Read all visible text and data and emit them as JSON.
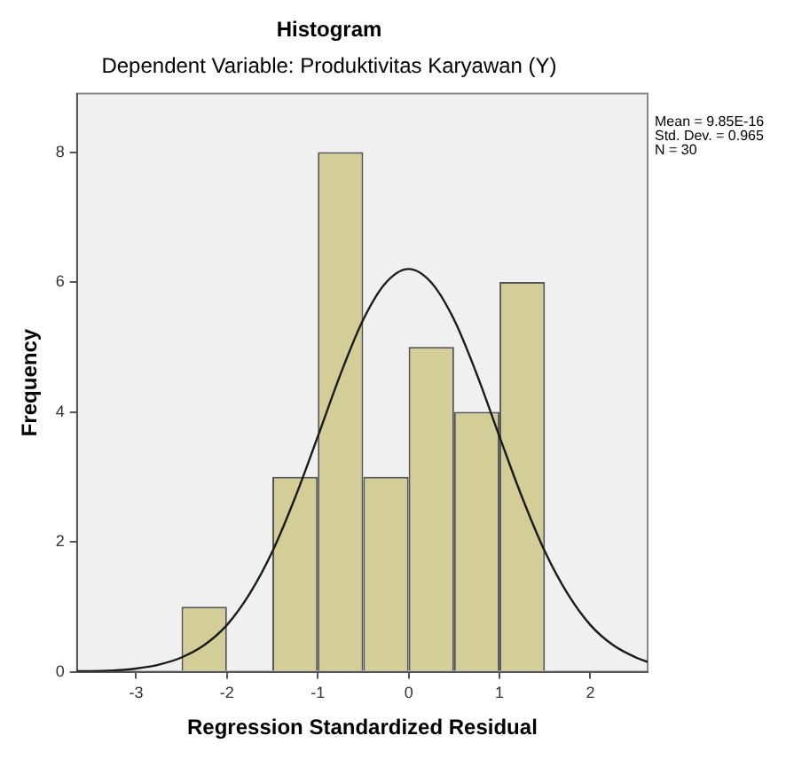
{
  "chart_data": {
    "type": "histogram",
    "title": "Histogram",
    "subtitle": "Dependent Variable: Produktivitas Karyawan (Y)",
    "xlabel": "Regression Standardized Residual",
    "ylabel": "Frequency",
    "bins": [
      -2.5,
      -2,
      -1.5,
      -1,
      -0.5,
      0,
      0.5,
      1,
      1.5
    ],
    "values": [
      1,
      0,
      3,
      8,
      3,
      5,
      4,
      6
    ],
    "color": "#d3ce98",
    "series": [
      {
        "type": "line",
        "color": "#1a1a1a",
        "x": [
          -3.65,
          -3.5,
          -3.25,
          -3,
          -2.75,
          -2.5,
          -2.25,
          -2,
          -1.75,
          -1.5,
          -1.25,
          -1,
          -0.75,
          -0.5,
          -0.25,
          0,
          0.25,
          0.5,
          0.75,
          1,
          1.25,
          1.5,
          1.75,
          2,
          2.25,
          2.5,
          2.63
        ],
        "values": [
          0.01,
          0.01,
          0.02,
          0.05,
          0.11,
          0.22,
          0.41,
          0.72,
          1.2,
          1.85,
          2.68,
          3.62,
          4.58,
          5.42,
          5.99,
          6.2,
          5.99,
          5.42,
          4.58,
          3.62,
          2.68,
          1.85,
          1.2,
          0.72,
          0.41,
          0.22,
          0.15
        ]
      }
    ],
    "xlim": [
      -3.65,
      2.63
    ],
    "xticks": [
      -3,
      -2,
      -1,
      0,
      1,
      2
    ],
    "ylim": [
      0,
      8.9
    ],
    "yticks": [
      0,
      2,
      4,
      6,
      8
    ],
    "grid": false,
    "legend": false,
    "marker": "none",
    "annotations": [
      "Mean = 9.85E-16",
      "Std. Dev. = 0.965",
      "N = 30"
    ]
  }
}
